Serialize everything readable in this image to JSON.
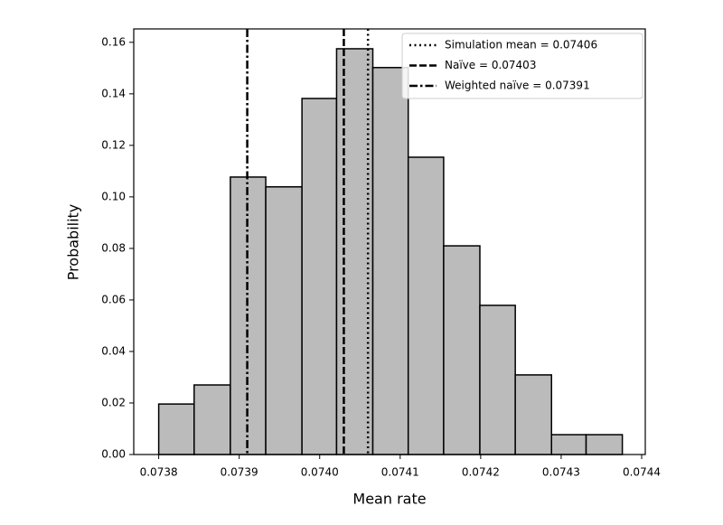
{
  "chart_data": {
    "type": "histogram",
    "xlabel": "Mean rate",
    "ylabel": "Probability",
    "bins": [
      0.0738,
      0.073844,
      0.073889,
      0.073933,
      0.073978,
      0.074021,
      0.074066,
      0.07411,
      0.074154,
      0.074199,
      0.074243,
      0.074288,
      0.074331,
      0.074376
    ],
    "values": [
      0.0196,
      0.027,
      0.1077,
      0.1039,
      0.1382,
      0.1575,
      0.1502,
      0.1154,
      0.081,
      0.0579,
      0.0309,
      0.0077,
      0.0077
    ],
    "color": "#bbbbbb",
    "edgecolor": "#000000",
    "xlim": [
      0.073769,
      0.0744045
    ],
    "xticks": [
      0.0738,
      0.0739,
      0.074,
      0.0741,
      0.0742,
      0.0743,
      0.0744
    ],
    "ylim": [
      0,
      0.1652
    ],
    "yticks": [
      {
        "value": 0,
        "label": "0.00"
      },
      0.02,
      0.04,
      0.06,
      0.08,
      {
        "value": 0.1,
        "label": "0.10"
      },
      0.12,
      0.14,
      0.16
    ],
    "xtick_labels": [
      "0.0738",
      "0.0739",
      "0.0740",
      "0.0741",
      "0.0742",
      "0.0743",
      "0.0744"
    ],
    "vlines": [
      {
        "name": "Simulation mean = 0.07406",
        "value": 0.07406,
        "style": "dotted",
        "color": "#000000"
      },
      {
        "name": "Naïve = 0.07403",
        "value": 0.07403,
        "style": "dashed",
        "color": "#000000"
      },
      {
        "name": "Weighted naïve = 0.07391",
        "value": 0.07391,
        "style": "dashdot",
        "color": "#000000"
      }
    ],
    "legend": "upper right"
  }
}
